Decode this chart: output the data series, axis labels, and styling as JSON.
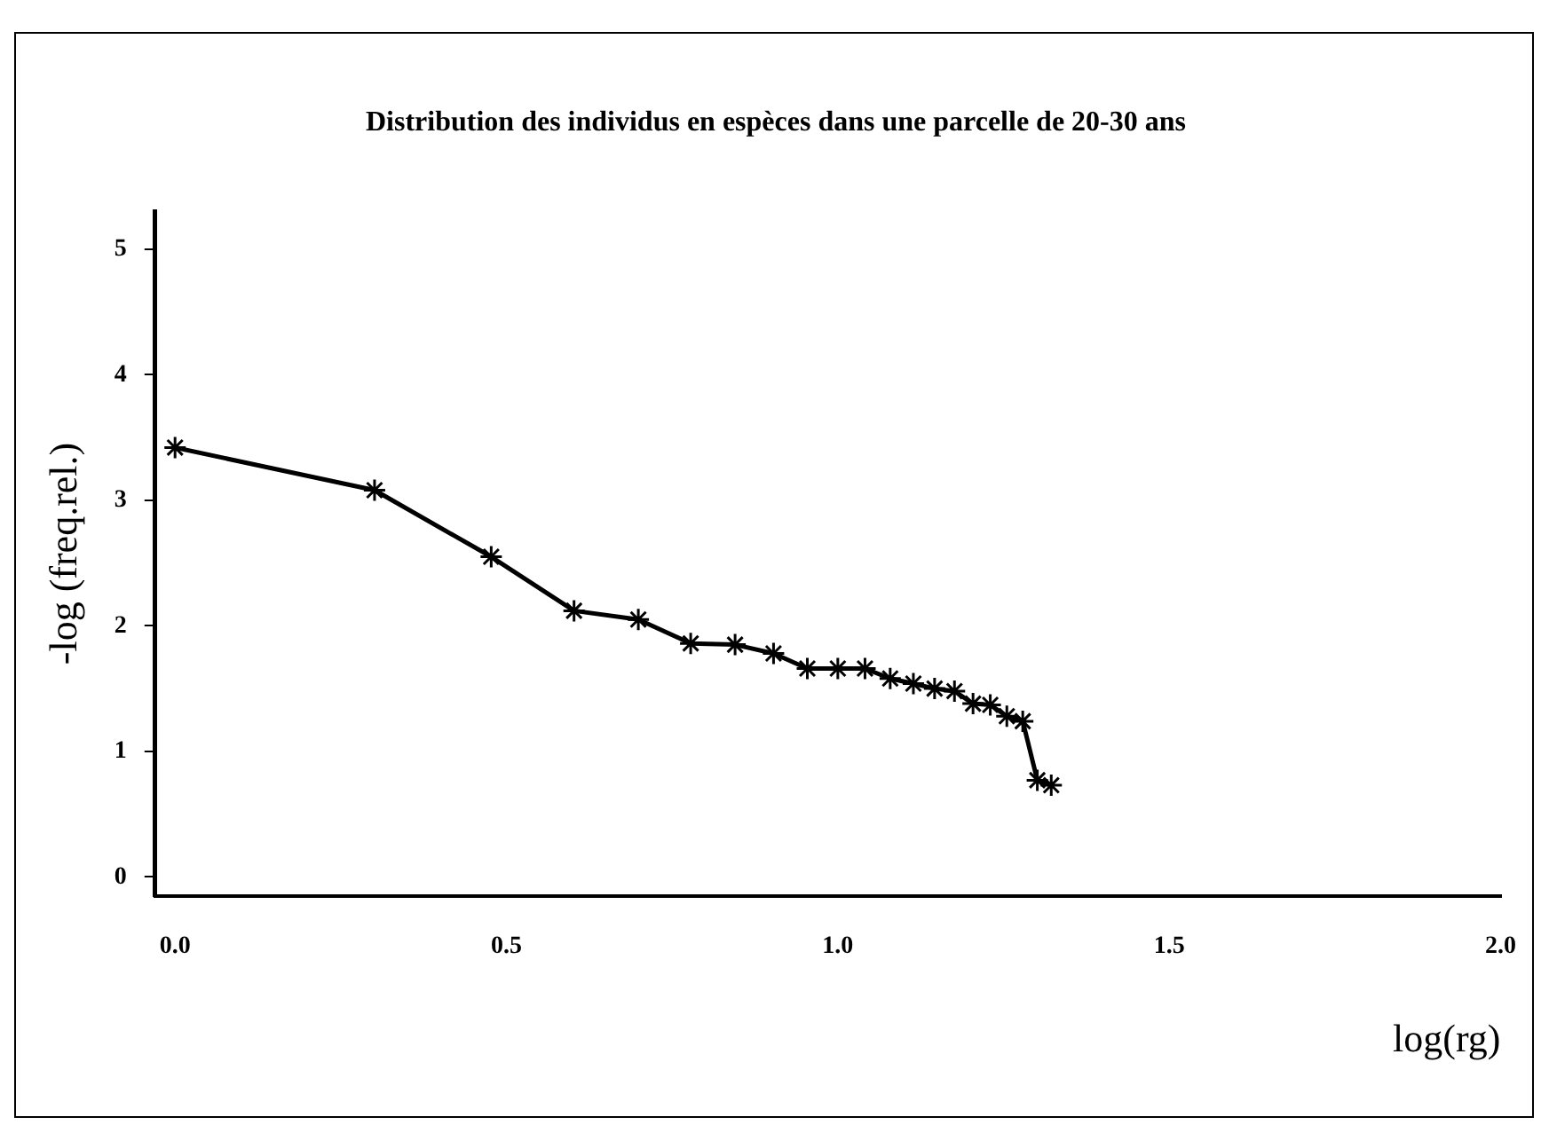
{
  "chart_data": {
    "type": "line",
    "title": "Distribution des individus en espèces dans une parcelle de 20-30 ans",
    "xlabel": "log(rg)",
    "ylabel": "-log (freq.rel.)",
    "x": [
      0,
      0.301,
      0.477,
      0.602,
      0.699,
      0.778,
      0.845,
      0.903,
      0.954,
      1.0,
      1.041,
      1.079,
      1.114,
      1.146,
      1.176,
      1.204,
      1.23,
      1.255,
      1.279,
      1.301,
      1.322
    ],
    "series": [
      {
        "color": "#000000",
        "values": [
          3.42,
          3.08,
          2.55,
          2.12,
          2.05,
          1.86,
          1.85,
          1.78,
          1.66,
          1.66,
          1.66,
          1.58,
          1.54,
          1.5,
          1.48,
          1.38,
          1.37,
          1.28,
          1.24,
          0.77,
          0.73
        ]
      }
    ],
    "xlim": [
      -0.03,
      2.0
    ],
    "xticks": [
      {
        "value": 0,
        "label": "0.0"
      },
      {
        "value": 0.5,
        "label": "0.5"
      },
      {
        "value": 1,
        "label": "1.0"
      },
      {
        "value": 1.5,
        "label": "1.5"
      },
      {
        "value": 2,
        "label": "2.0"
      }
    ],
    "ylim": [
      -0.15,
      5.3
    ],
    "yticks": [
      0,
      1,
      2,
      3,
      4,
      5
    ],
    "grid": false,
    "legend": false,
    "marker": "cross",
    "line_style": "solid"
  }
}
